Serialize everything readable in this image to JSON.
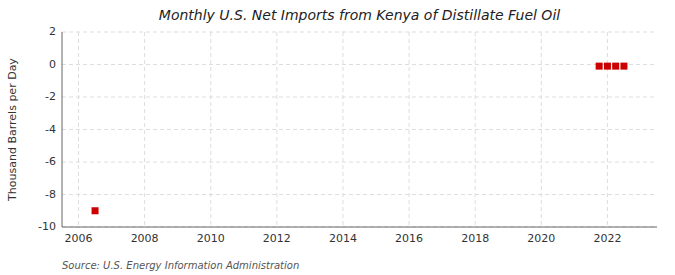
{
  "chart_data": {
    "type": "scatter",
    "title": "Monthly U.S. Net Imports from Kenya of Distillate Fuel Oil",
    "y_label": "Thousand Barrels per Day",
    "annotations": [
      "Source: U.S. Energy Information Administration"
    ],
    "x": [
      2006.5,
      2021.75,
      2022.0,
      2022.25,
      2022.5
    ],
    "values": [
      -9.0,
      -0.1,
      -0.1,
      -0.1,
      -0.1
    ],
    "color": "#cc0000",
    "marker": "square",
    "xlim": [
      2005.5,
      2023.5
    ],
    "xticks": [
      2006,
      2008,
      2010,
      2012,
      2014,
      2016,
      2018,
      2020,
      2022
    ],
    "ylim": [
      -10,
      2
    ],
    "yticks": [
      -10,
      -8,
      -6,
      -4,
      -2,
      0,
      2
    ],
    "grid": true
  }
}
